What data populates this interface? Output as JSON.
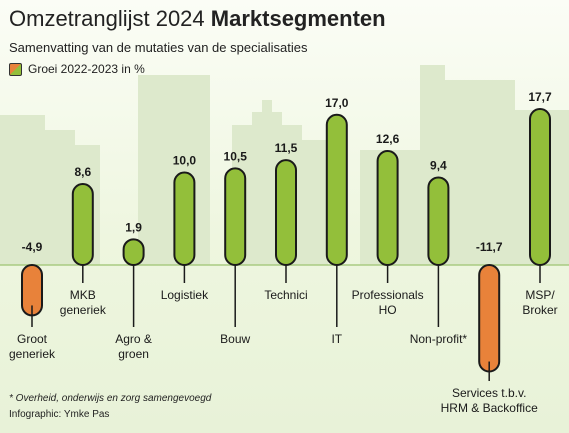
{
  "title": {
    "light": "Omzetranglijst 2024",
    "bold": "Marktsegmenten"
  },
  "subtitle": "Samenvatting van de mutaties van de specialisaties",
  "legend": {
    "label": "Groei 2022-2023 in %",
    "swatch_icon": "split-orange-green-square"
  },
  "footnote": "* Overheid, onderwijs en zorg samengevoegd",
  "credit": "Infographic: Ymke Pas",
  "colors": {
    "positive": "#93bf3a",
    "negative": "#e8823a",
    "outline": "#1a1a1a",
    "baseline": "#aacb82",
    "skyline": "#dde9cc"
  },
  "chart_data": {
    "type": "bar",
    "categories": [
      "Groot\ngeneriek",
      "MKB\ngeneriek",
      "Agro &\ngroen",
      "Logistiek",
      "Bouw",
      "Technici",
      "IT",
      "Professionals\nHO",
      "Non-profit*",
      "Services t.b.v.\nHRM & Backoffice",
      "MSP/\nBroker"
    ],
    "value_labels": [
      "-4,9",
      "8,6",
      "1,9",
      "10,0",
      "10,5",
      "11,5",
      "17,0",
      "12,6",
      "9,4",
      "-11,7",
      "17,7"
    ],
    "values": [
      -4.9,
      8.6,
      1.9,
      10.0,
      10.5,
      11.5,
      17.0,
      12.6,
      9.4,
      -11.7,
      17.7
    ],
    "series": [
      {
        "name": "Groei 2022-2023 in %",
        "values": [
          -4.9,
          8.6,
          1.9,
          10.0,
          10.5,
          11.5,
          17.0,
          12.6,
          9.4,
          -11.7,
          17.7
        ]
      }
    ],
    "ylim": [
      -11.7,
      17.7
    ],
    "grid": false,
    "legend_position": "top-left"
  }
}
